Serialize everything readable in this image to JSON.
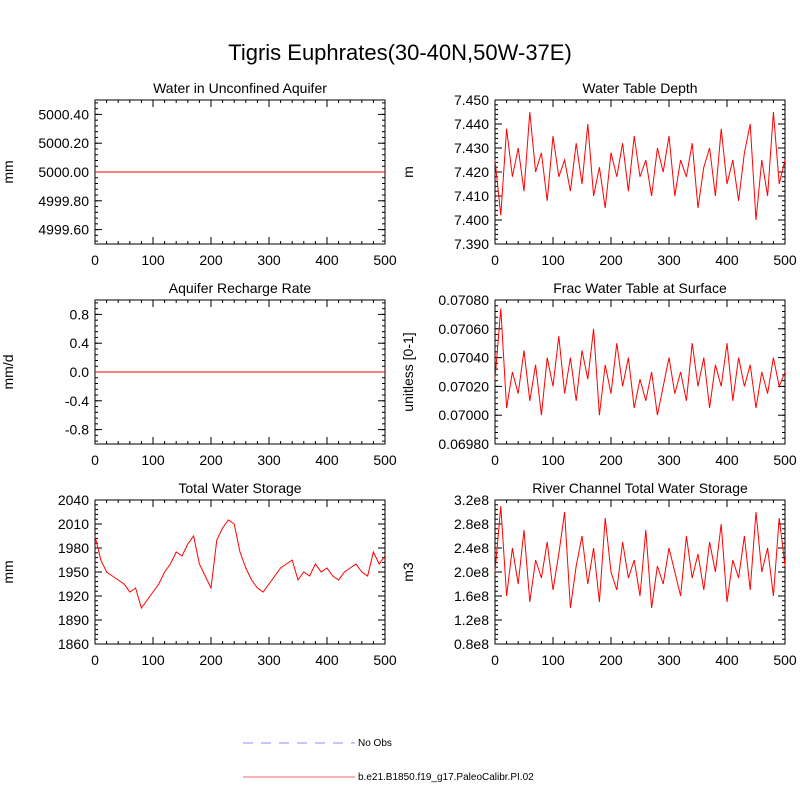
{
  "figure_title": "Tigris Euphrates(30-40N,50W-37E)",
  "legend": [
    {
      "label": "No Obs",
      "color": "#b3b3ff",
      "style": "dashed"
    },
    {
      "label": "b.e21.B1850.f19_g17.PaleoCalibr.PI.02",
      "color": "#ff9999",
      "style": "solid"
    }
  ],
  "chart_data": [
    {
      "type": "line",
      "title": "Water in Unconfined Aquifer",
      "ylabel": "mm",
      "xlim": [
        0,
        500
      ],
      "ylim": [
        4999.5,
        5000.5
      ],
      "xticks": [
        "0",
        "100",
        "200",
        "300",
        "400",
        "500"
      ],
      "yticks": [
        {
          "v": 4999.6,
          "label": "4999.60"
        },
        {
          "v": 4999.8,
          "label": "4999.80"
        },
        {
          "v": 5000.0,
          "label": "5000.00"
        },
        {
          "v": 5000.2,
          "label": "5000.20"
        },
        {
          "v": 5000.4,
          "label": "5000.40"
        }
      ],
      "series": [
        {
          "name": "b.e21.B1850.f19_g17.PaleoCalibr.PI.02",
          "color": "#ff0000",
          "x": [
            0,
            500
          ],
          "y": [
            5000.0,
            5000.0
          ]
        }
      ]
    },
    {
      "type": "line",
      "title": "Water Table Depth",
      "ylabel": "m",
      "xlim": [
        0,
        500
      ],
      "ylim": [
        7.39,
        7.45
      ],
      "xticks": [
        "0",
        "100",
        "200",
        "300",
        "400",
        "500"
      ],
      "yticks": [
        {
          "v": 7.39,
          "label": "7.390"
        },
        {
          "v": 7.4,
          "label": "7.400"
        },
        {
          "v": 7.41,
          "label": "7.410"
        },
        {
          "v": 7.42,
          "label": "7.420"
        },
        {
          "v": 7.43,
          "label": "7.430"
        },
        {
          "v": 7.44,
          "label": "7.440"
        },
        {
          "v": 7.45,
          "label": "7.450"
        }
      ],
      "series": [
        {
          "name": "b.e21.B1850.f19_g17.PaleoCalibr.PI.02",
          "color": "#ff0000",
          "x": [
            0,
            10,
            20,
            30,
            40,
            50,
            60,
            70,
            80,
            90,
            100,
            110,
            120,
            130,
            140,
            150,
            160,
            170,
            180,
            190,
            200,
            210,
            220,
            230,
            240,
            250,
            260,
            270,
            280,
            290,
            300,
            310,
            320,
            330,
            340,
            350,
            360,
            370,
            380,
            390,
            400,
            410,
            420,
            430,
            440,
            450,
            460,
            470,
            480,
            490,
            500
          ],
          "y": [
            7.425,
            7.402,
            7.438,
            7.418,
            7.43,
            7.412,
            7.445,
            7.42,
            7.428,
            7.408,
            7.435,
            7.418,
            7.425,
            7.412,
            7.432,
            7.415,
            7.44,
            7.41,
            7.422,
            7.405,
            7.428,
            7.418,
            7.432,
            7.412,
            7.435,
            7.418,
            7.425,
            7.41,
            7.43,
            7.42,
            7.435,
            7.41,
            7.425,
            7.418,
            7.432,
            7.405,
            7.422,
            7.43,
            7.41,
            7.438,
            7.415,
            7.425,
            7.408,
            7.428,
            7.44,
            7.4,
            7.425,
            7.41,
            7.445,
            7.415,
            7.425
          ]
        }
      ]
    },
    {
      "type": "line",
      "title": "Aquifer Recharge Rate",
      "ylabel": "mm/d",
      "xlim": [
        0,
        500
      ],
      "ylim": [
        -1.0,
        1.0
      ],
      "xticks": [
        "0",
        "100",
        "200",
        "300",
        "400",
        "500"
      ],
      "yticks": [
        {
          "v": -0.8,
          "label": "-0.8"
        },
        {
          "v": -0.4,
          "label": "-0.4"
        },
        {
          "v": 0.0,
          "label": "0.0"
        },
        {
          "v": 0.4,
          "label": "0.4"
        },
        {
          "v": 0.8,
          "label": "0.8"
        }
      ],
      "series": [
        {
          "name": "b.e21.B1850.f19_g17.PaleoCalibr.PI.02",
          "color": "#ff0000",
          "x": [
            0,
            500
          ],
          "y": [
            0.0,
            0.0
          ]
        }
      ]
    },
    {
      "type": "line",
      "title": "Frac Water Table at Surface",
      "ylabel": "unitless [0-1]",
      "xlim": [
        0,
        500
      ],
      "ylim": [
        0.0698,
        0.0708
      ],
      "xticks": [
        "0",
        "100",
        "200",
        "300",
        "400",
        "500"
      ],
      "yticks": [
        {
          "v": 0.0698,
          "label": "0.06980"
        },
        {
          "v": 0.07,
          "label": "0.07000"
        },
        {
          "v": 0.0702,
          "label": "0.07020"
        },
        {
          "v": 0.0704,
          "label": "0.07040"
        },
        {
          "v": 0.0706,
          "label": "0.07060"
        },
        {
          "v": 0.0708,
          "label": "0.07080"
        }
      ],
      "series": [
        {
          "name": "b.e21.B1850.f19_g17.PaleoCalibr.PI.02",
          "color": "#ff0000",
          "x": [
            0,
            10,
            20,
            30,
            40,
            50,
            60,
            70,
            80,
            90,
            100,
            110,
            120,
            130,
            140,
            150,
            160,
            170,
            180,
            190,
            200,
            210,
            220,
            230,
            240,
            250,
            260,
            270,
            280,
            290,
            300,
            310,
            320,
            330,
            340,
            350,
            360,
            370,
            380,
            390,
            400,
            410,
            420,
            430,
            440,
            450,
            460,
            470,
            480,
            490,
            500
          ],
          "y": [
            0.07025,
            0.07074,
            0.07005,
            0.0703,
            0.07015,
            0.07045,
            0.0701,
            0.07035,
            0.07,
            0.0704,
            0.0702,
            0.07055,
            0.07015,
            0.0704,
            0.0701,
            0.07045,
            0.07025,
            0.0706,
            0.07,
            0.07035,
            0.07015,
            0.0705,
            0.0702,
            0.0704,
            0.07005,
            0.07025,
            0.0701,
            0.0703,
            0.07,
            0.0702,
            0.0704,
            0.07015,
            0.0703,
            0.0701,
            0.0705,
            0.0702,
            0.0704,
            0.07005,
            0.07035,
            0.0702,
            0.0705,
            0.0701,
            0.0704,
            0.0702,
            0.07035,
            0.07005,
            0.0703,
            0.07015,
            0.0704,
            0.0702,
            0.0703
          ]
        }
      ]
    },
    {
      "type": "line",
      "title": "Total Water Storage",
      "ylabel": "mm",
      "xlim": [
        0,
        500
      ],
      "ylim": [
        1860,
        2040
      ],
      "xticks": [
        "0",
        "100",
        "200",
        "300",
        "400",
        "500"
      ],
      "yticks": [
        {
          "v": 1860,
          "label": "1860"
        },
        {
          "v": 1890,
          "label": "1890"
        },
        {
          "v": 1920,
          "label": "1920"
        },
        {
          "v": 1950,
          "label": "1950"
        },
        {
          "v": 1980,
          "label": "1980"
        },
        {
          "v": 2010,
          "label": "2010"
        },
        {
          "v": 2040,
          "label": "2040"
        }
      ],
      "series": [
        {
          "name": "b.e21.B1850.f19_g17.PaleoCalibr.PI.02",
          "color": "#ff0000",
          "x": [
            0,
            10,
            20,
            30,
            40,
            50,
            60,
            70,
            80,
            90,
            100,
            110,
            120,
            130,
            140,
            150,
            160,
            170,
            180,
            190,
            200,
            210,
            220,
            230,
            240,
            250,
            260,
            270,
            280,
            290,
            300,
            310,
            320,
            330,
            340,
            350,
            360,
            370,
            380,
            390,
            400,
            410,
            420,
            430,
            440,
            450,
            460,
            470,
            480,
            490,
            500
          ],
          "y": [
            1995,
            1965,
            1950,
            1945,
            1940,
            1935,
            1925,
            1930,
            1905,
            1915,
            1925,
            1935,
            1950,
            1960,
            1975,
            1970,
            1985,
            1995,
            1960,
            1945,
            1930,
            1990,
            2005,
            2015,
            2010,
            1975,
            1955,
            1940,
            1930,
            1925,
            1935,
            1945,
            1955,
            1960,
            1965,
            1940,
            1950,
            1945,
            1960,
            1950,
            1955,
            1945,
            1940,
            1950,
            1955,
            1960,
            1950,
            1945,
            1975,
            1960,
            1970
          ]
        }
      ]
    },
    {
      "type": "line",
      "title": "River Channel Total Water Storage",
      "ylabel": "m3",
      "xlim": [
        0,
        500
      ],
      "ylim": [
        80000000,
        320000000
      ],
      "xticks": [
        "0",
        "100",
        "200",
        "300",
        "400",
        "500"
      ],
      "yticks": [
        {
          "v": 80000000,
          "label": "0.8e8"
        },
        {
          "v": 120000000,
          "label": "1.2e8"
        },
        {
          "v": 160000000,
          "label": "1.6e8"
        },
        {
          "v": 200000000,
          "label": "2.0e8"
        },
        {
          "v": 240000000,
          "label": "2.4e8"
        },
        {
          "v": 280000000,
          "label": "2.8e8"
        },
        {
          "v": 320000000,
          "label": "3.2e8"
        }
      ],
      "series": [
        {
          "name": "b.e21.B1850.f19_g17.PaleoCalibr.PI.02",
          "color": "#ff0000",
          "x": [
            0,
            10,
            20,
            30,
            40,
            50,
            60,
            70,
            80,
            90,
            100,
            110,
            120,
            130,
            140,
            150,
            160,
            170,
            180,
            190,
            200,
            210,
            220,
            230,
            240,
            250,
            260,
            270,
            280,
            290,
            300,
            310,
            320,
            330,
            340,
            350,
            360,
            370,
            380,
            390,
            400,
            410,
            420,
            430,
            440,
            450,
            460,
            470,
            480,
            490,
            500
          ],
          "y": [
            200000000,
            310000000,
            160000000,
            240000000,
            180000000,
            270000000,
            150000000,
            220000000,
            190000000,
            250000000,
            170000000,
            230000000,
            300000000,
            140000000,
            210000000,
            260000000,
            180000000,
            240000000,
            150000000,
            290000000,
            200000000,
            170000000,
            250000000,
            190000000,
            220000000,
            160000000,
            270000000,
            140000000,
            210000000,
            180000000,
            240000000,
            200000000,
            160000000,
            260000000,
            190000000,
            230000000,
            170000000,
            250000000,
            200000000,
            280000000,
            150000000,
            220000000,
            190000000,
            260000000,
            170000000,
            300000000,
            200000000,
            240000000,
            160000000,
            290000000,
            210000000
          ]
        }
      ]
    }
  ]
}
